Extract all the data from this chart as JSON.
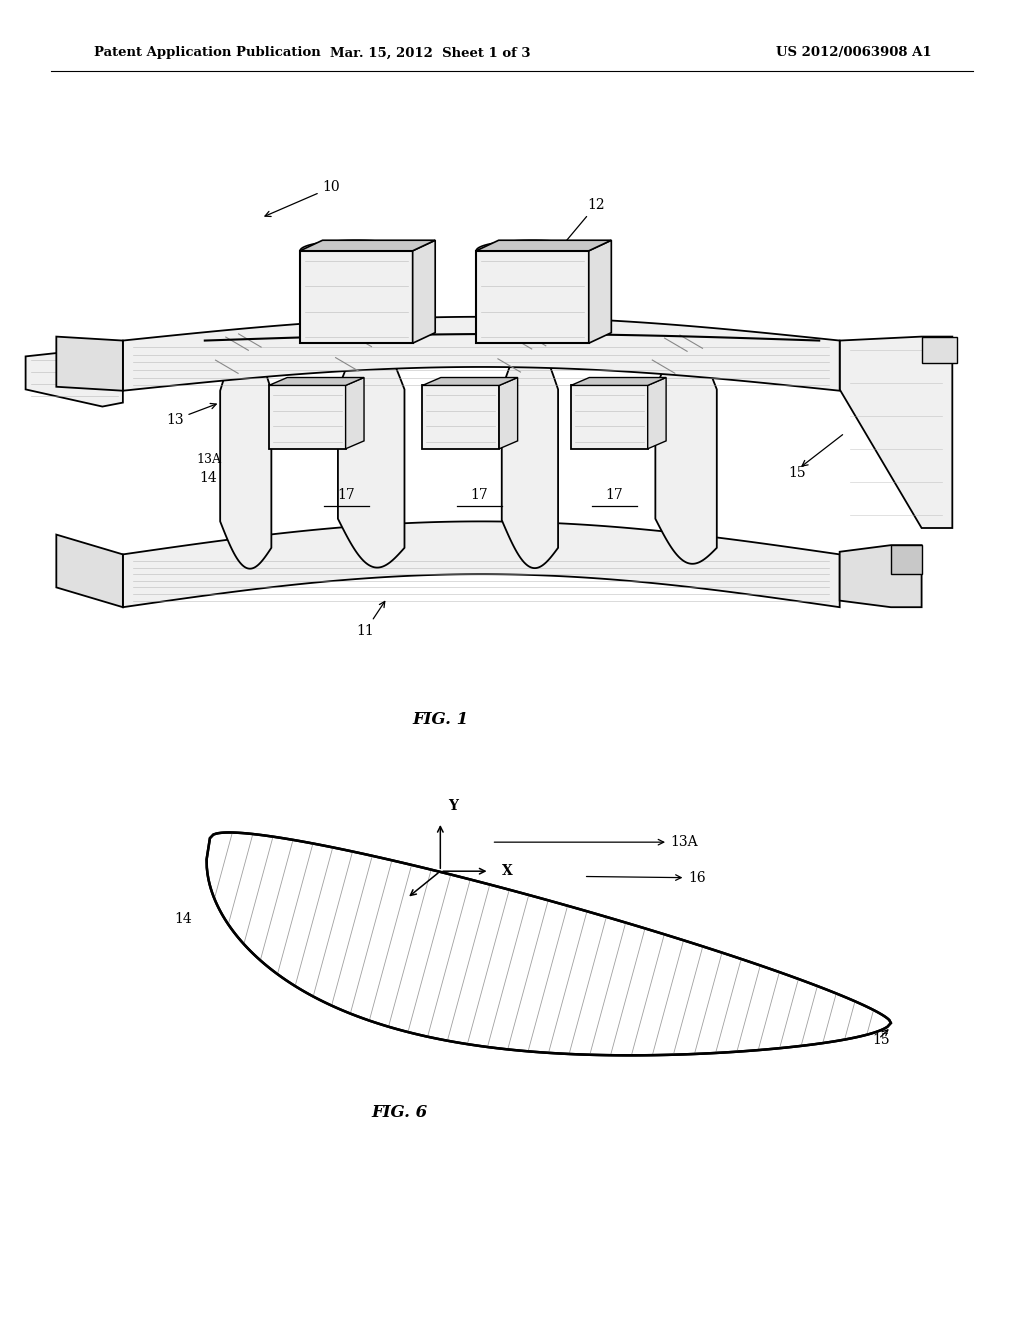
{
  "bg_color": "#ffffff",
  "line_color": "#000000",
  "header_left": "Patent Application Publication",
  "header_center": "Mar. 15, 2012  Sheet 1 of 3",
  "header_right": "US 2012/0063908 A1",
  "fig1_caption": "FIG. 1",
  "fig6_caption": "FIG. 6",
  "gray_light": "#f0f0f0",
  "gray_mid": "#e0e0e0",
  "gray_dark": "#c8c8c8",
  "hatch_gray": "#aaaaaa"
}
